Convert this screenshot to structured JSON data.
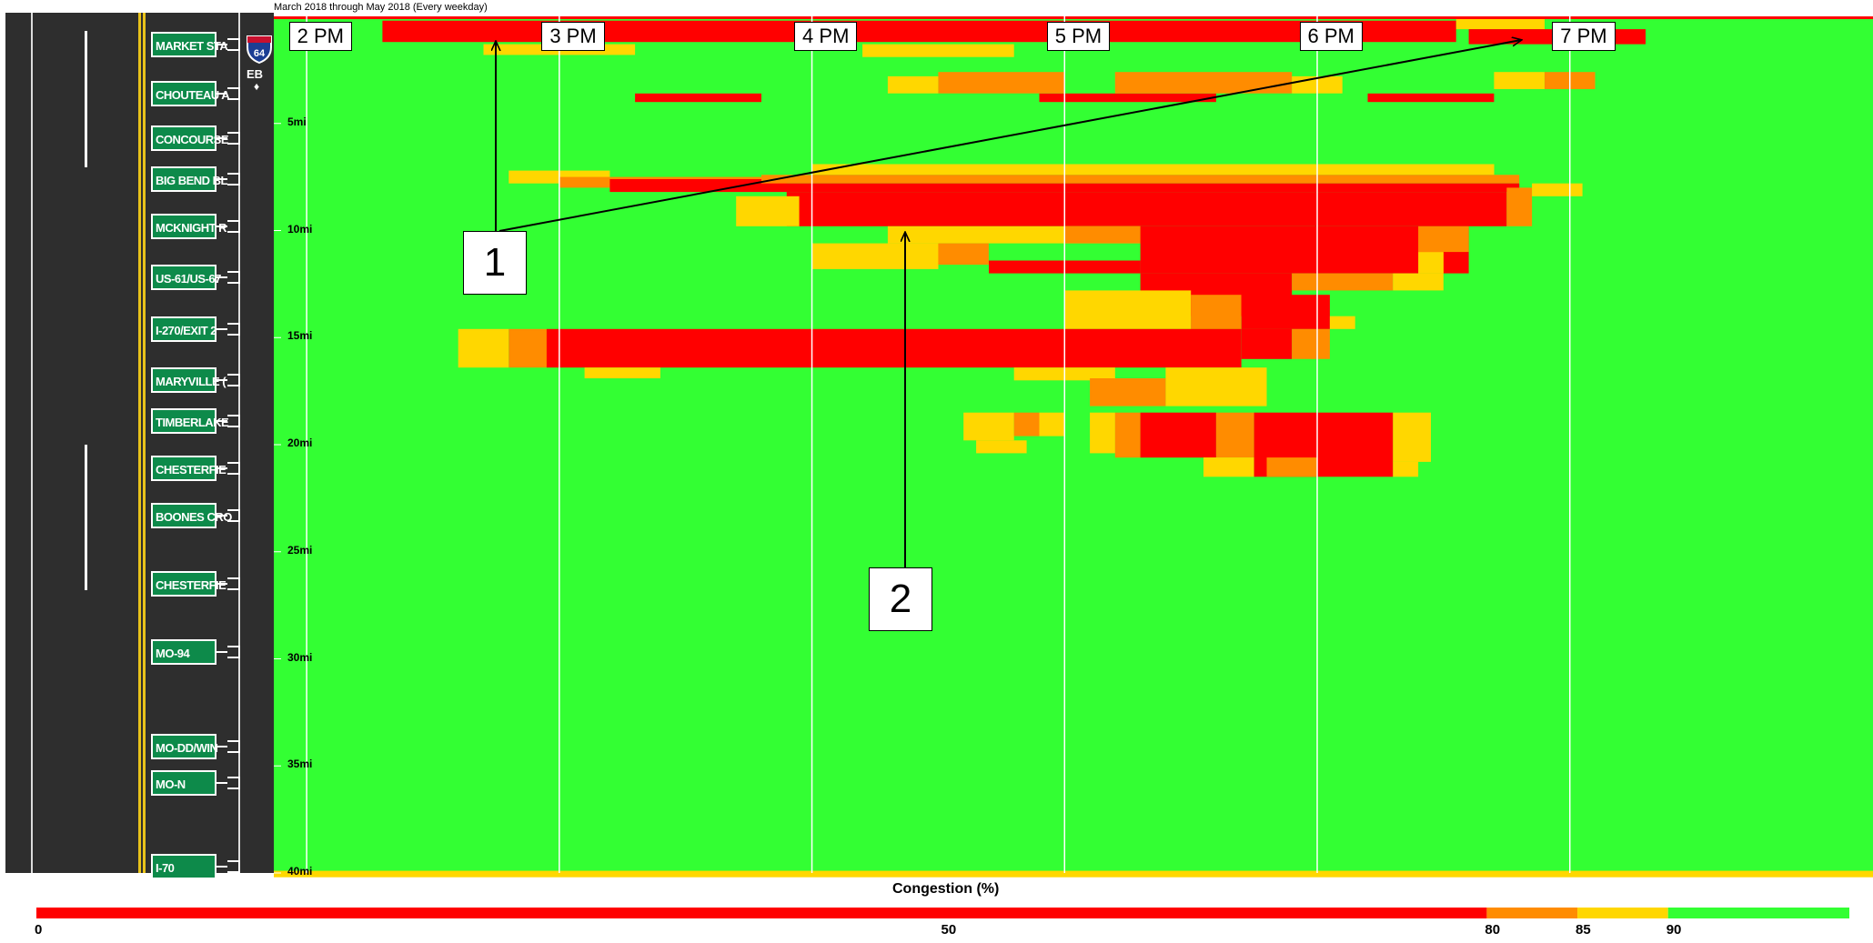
{
  "subtitle": "March 2018 through May 2018 (Every weekday)",
  "route": {
    "shield_number": "64",
    "direction": "EB",
    "direction_arrow": "♦"
  },
  "exits": [
    {
      "label": "MARKET STA",
      "mile": 1.3
    },
    {
      "label": "CHOUTEAU A",
      "mile": 3.6
    },
    {
      "label": "CONCOURSE",
      "mile": 5.7
    },
    {
      "label": "BIG BEND BL",
      "mile": 7.6
    },
    {
      "label": "MCKNIGHT R",
      "mile": 9.8
    },
    {
      "label": "US-61/US-67",
      "mile": 12.2
    },
    {
      "label": "I-270/EXIT 2",
      "mile": 14.6
    },
    {
      "label": "MARYVILLE (",
      "mile": 17.0
    },
    {
      "label": "TIMBERLAKE",
      "mile": 18.9
    },
    {
      "label": "CHESTERFIE",
      "mile": 21.1
    },
    {
      "label": "BOONES CRO",
      "mile": 23.3
    },
    {
      "label": "CHESTERFIE",
      "mile": 26.5
    },
    {
      "label": "MO-94",
      "mile": 29.7
    },
    {
      "label": "MO-DD/WIN",
      "mile": 34.1
    },
    {
      "label": "MO-N",
      "mile": 35.8
    },
    {
      "label": "I-70",
      "mile": 39.7
    }
  ],
  "callouts": [
    {
      "label": "1"
    },
    {
      "label": "2"
    }
  ],
  "legend": {
    "title": "Congestion (%)",
    "ticks": [
      {
        "label": "0",
        "value": 0
      },
      {
        "label": "50",
        "value": 50
      },
      {
        "label": "80",
        "value": 80
      },
      {
        "label": "85",
        "value": 85
      },
      {
        "label": "90",
        "value": 90
      }
    ],
    "colors": {
      "severe": "#ff0000",
      "heavy": "#ff8c00",
      "moderate": "#ffd700",
      "free": "#33ff33"
    }
  },
  "chart_data": {
    "type": "heatmap",
    "title": "",
    "xlabel": "",
    "ylabel": "",
    "x_range_hours": [
      13.87,
      20.2
    ],
    "y_range_miles": [
      0,
      40
    ],
    "x_ticks": [
      {
        "label": "2 PM",
        "hour": 14
      },
      {
        "label": "3 PM",
        "hour": 15
      },
      {
        "label": "4 PM",
        "hour": 16
      },
      {
        "label": "5 PM",
        "hour": 17
      },
      {
        "label": "6 PM",
        "hour": 18
      },
      {
        "label": "7 PM",
        "hour": 19
      }
    ],
    "y_ticks": [
      {
        "label": "5mi",
        "mile": 5
      },
      {
        "label": "10mi",
        "mile": 10
      },
      {
        "label": "15mi",
        "mile": 15
      },
      {
        "label": "20mi",
        "mile": 20
      },
      {
        "label": "25mi",
        "mile": 25
      },
      {
        "label": "30mi",
        "mile": 30
      },
      {
        "label": "35mi",
        "mile": 35
      },
      {
        "label": "40mi",
        "mile": 40
      }
    ],
    "congestion_thresholds_pct": [
      80,
      85,
      90
    ],
    "background_level": "free",
    "regions": [
      {
        "level": "severe",
        "hour": [
          14.3,
          18.55
        ],
        "mile": [
          0.2,
          1.2
        ]
      },
      {
        "level": "moderate",
        "hour": [
          18.55,
          18.9
        ],
        "mile": [
          0.0,
          0.6
        ]
      },
      {
        "level": "severe",
        "hour": [
          18.6,
          19.3
        ],
        "mile": [
          0.6,
          1.3
        ]
      },
      {
        "level": "moderate",
        "hour": [
          14.7,
          15.3
        ],
        "mile": [
          1.3,
          1.8
        ]
      },
      {
        "level": "moderate",
        "hour": [
          16.2,
          16.8
        ],
        "mile": [
          1.3,
          1.9
        ]
      },
      {
        "level": "severe",
        "hour": [
          15.3,
          15.8
        ],
        "mile": [
          3.6,
          4.0
        ]
      },
      {
        "level": "severe",
        "hour": [
          16.9,
          17.6
        ],
        "mile": [
          3.6,
          4.0
        ]
      },
      {
        "level": "severe",
        "hour": [
          18.2,
          18.7
        ],
        "mile": [
          3.6,
          4.0
        ]
      },
      {
        "level": "heavy",
        "hour": [
          16.5,
          17.0
        ],
        "mile": [
          2.6,
          3.6
        ]
      },
      {
        "level": "heavy",
        "hour": [
          17.2,
          17.9
        ],
        "mile": [
          2.6,
          3.6
        ]
      },
      {
        "level": "moderate",
        "hour": [
          16.3,
          16.5
        ],
        "mile": [
          2.8,
          3.6
        ]
      },
      {
        "level": "moderate",
        "hour": [
          17.9,
          18.1
        ],
        "mile": [
          2.8,
          3.6
        ]
      },
      {
        "level": "moderate",
        "hour": [
          18.7,
          18.9
        ],
        "mile": [
          2.6,
          3.4
        ]
      },
      {
        "level": "heavy",
        "hour": [
          18.9,
          19.1
        ],
        "mile": [
          2.6,
          3.4
        ]
      },
      {
        "level": "moderate",
        "hour": [
          14.8,
          15.2
        ],
        "mile": [
          7.2,
          7.8
        ]
      },
      {
        "level": "heavy",
        "hour": [
          15.0,
          15.9
        ],
        "mile": [
          7.5,
          8.0
        ]
      },
      {
        "level": "severe",
        "hour": [
          15.2,
          15.8
        ],
        "mile": [
          7.6,
          8.2
        ]
      },
      {
        "level": "moderate",
        "hour": [
          16.0,
          18.7
        ],
        "mile": [
          6.9,
          7.4
        ]
      },
      {
        "level": "heavy",
        "hour": [
          15.8,
          18.8
        ],
        "mile": [
          7.4,
          7.8
        ]
      },
      {
        "level": "severe",
        "hour": [
          15.8,
          18.8
        ],
        "mile": [
          7.8,
          8.2
        ]
      },
      {
        "level": "severe",
        "hour": [
          15.9,
          18.75
        ],
        "mile": [
          8.2,
          9.8
        ]
      },
      {
        "level": "heavy",
        "hour": [
          18.75,
          18.85
        ],
        "mile": [
          8.0,
          9.8
        ]
      },
      {
        "level": "moderate",
        "hour": [
          18.85,
          19.05
        ],
        "mile": [
          7.8,
          8.4
        ]
      },
      {
        "level": "moderate",
        "hour": [
          15.7,
          15.95
        ],
        "mile": [
          8.4,
          9.8
        ]
      },
      {
        "level": "moderate",
        "hour": [
          16.3,
          17.3
        ],
        "mile": [
          9.8,
          10.6
        ]
      },
      {
        "level": "heavy",
        "hour": [
          17.0,
          17.3
        ],
        "mile": [
          9.8,
          10.6
        ]
      },
      {
        "level": "severe",
        "hour": [
          17.3,
          18.6
        ],
        "mile": [
          9.8,
          12.0
        ]
      },
      {
        "level": "heavy",
        "hour": [
          18.4,
          18.6
        ],
        "mile": [
          9.8,
          11.0
        ]
      },
      {
        "level": "moderate",
        "hour": [
          18.4,
          18.5
        ],
        "mile": [
          11.0,
          12.0
        ]
      },
      {
        "level": "moderate",
        "hour": [
          16.0,
          16.5
        ],
        "mile": [
          10.6,
          11.8
        ]
      },
      {
        "level": "heavy",
        "hour": [
          16.5,
          16.7
        ],
        "mile": [
          10.6,
          11.6
        ]
      },
      {
        "level": "severe",
        "hour": [
          16.7,
          17.3
        ],
        "mile": [
          11.4,
          12.0
        ]
      },
      {
        "level": "severe",
        "hour": [
          17.3,
          17.9
        ],
        "mile": [
          12.0,
          14.0
        ]
      },
      {
        "level": "heavy",
        "hour": [
          17.9,
          18.3
        ],
        "mile": [
          12.0,
          12.8
        ]
      },
      {
        "level": "moderate",
        "hour": [
          18.3,
          18.5
        ],
        "mile": [
          12.0,
          12.8
        ]
      },
      {
        "level": "moderate",
        "hour": [
          17.0,
          17.5
        ],
        "mile": [
          12.8,
          14.6
        ]
      },
      {
        "level": "heavy",
        "hour": [
          17.5,
          17.7
        ],
        "mile": [
          13.0,
          14.6
        ]
      },
      {
        "level": "severe",
        "hour": [
          17.7,
          18.05
        ],
        "mile": [
          13.0,
          14.6
        ]
      },
      {
        "level": "moderate",
        "hour": [
          18.05,
          18.15
        ],
        "mile": [
          14.0,
          14.6
        ]
      },
      {
        "level": "moderate",
        "hour": [
          14.6,
          14.8
        ],
        "mile": [
          14.6,
          16.4
        ]
      },
      {
        "level": "heavy",
        "hour": [
          14.8,
          14.95
        ],
        "mile": [
          14.6,
          16.4
        ]
      },
      {
        "level": "severe",
        "hour": [
          14.95,
          17.7
        ],
        "mile": [
          14.6,
          16.4
        ]
      },
      {
        "level": "severe",
        "hour": [
          17.7,
          17.9
        ],
        "mile": [
          14.6,
          16.0
        ]
      },
      {
        "level": "heavy",
        "hour": [
          17.9,
          18.05
        ],
        "mile": [
          14.6,
          16.0
        ]
      },
      {
        "level": "moderate",
        "hour": [
          15.1,
          15.4
        ],
        "mile": [
          16.4,
          16.9
        ]
      },
      {
        "level": "moderate",
        "hour": [
          16.8,
          17.2
        ],
        "mile": [
          16.4,
          17.0
        ]
      },
      {
        "level": "moderate",
        "hour": [
          17.4,
          17.8
        ],
        "mile": [
          16.4,
          18.2
        ]
      },
      {
        "level": "heavy",
        "hour": [
          17.1,
          17.4
        ],
        "mile": [
          16.9,
          18.2
        ]
      },
      {
        "level": "moderate",
        "hour": [
          16.6,
          16.8
        ],
        "mile": [
          18.5,
          19.8
        ]
      },
      {
        "level": "heavy",
        "hour": [
          16.8,
          16.9
        ],
        "mile": [
          18.5,
          19.6
        ]
      },
      {
        "level": "moderate",
        "hour": [
          16.9,
          17.0
        ],
        "mile": [
          18.5,
          19.6
        ]
      },
      {
        "level": "moderate",
        "hour": [
          16.65,
          16.85
        ],
        "mile": [
          19.8,
          20.4
        ]
      },
      {
        "level": "moderate",
        "hour": [
          17.1,
          17.2
        ],
        "mile": [
          18.5,
          20.4
        ]
      },
      {
        "level": "heavy",
        "hour": [
          17.2,
          17.3
        ],
        "mile": [
          18.5,
          20.6
        ]
      },
      {
        "level": "severe",
        "hour": [
          17.3,
          17.6
        ],
        "mile": [
          18.5,
          20.6
        ]
      },
      {
        "level": "heavy",
        "hour": [
          17.6,
          17.75
        ],
        "mile": [
          18.5,
          20.6
        ]
      },
      {
        "level": "severe",
        "hour": [
          17.75,
          18.3
        ],
        "mile": [
          18.5,
          21.5
        ]
      },
      {
        "level": "moderate",
        "hour": [
          18.3,
          18.45
        ],
        "mile": [
          18.5,
          20.8
        ]
      },
      {
        "level": "moderate",
        "hour": [
          17.55,
          17.75
        ],
        "mile": [
          20.6,
          21.5
        ]
      },
      {
        "level": "heavy",
        "hour": [
          17.8,
          18.0
        ],
        "mile": [
          20.6,
          21.5
        ]
      },
      {
        "level": "moderate",
        "hour": [
          18.3,
          18.4
        ],
        "mile": [
          20.8,
          21.5
        ]
      },
      {
        "level": "moderate",
        "hour": [
          13.87,
          20.2
        ],
        "mile": [
          39.9,
          40.2
        ]
      }
    ]
  }
}
